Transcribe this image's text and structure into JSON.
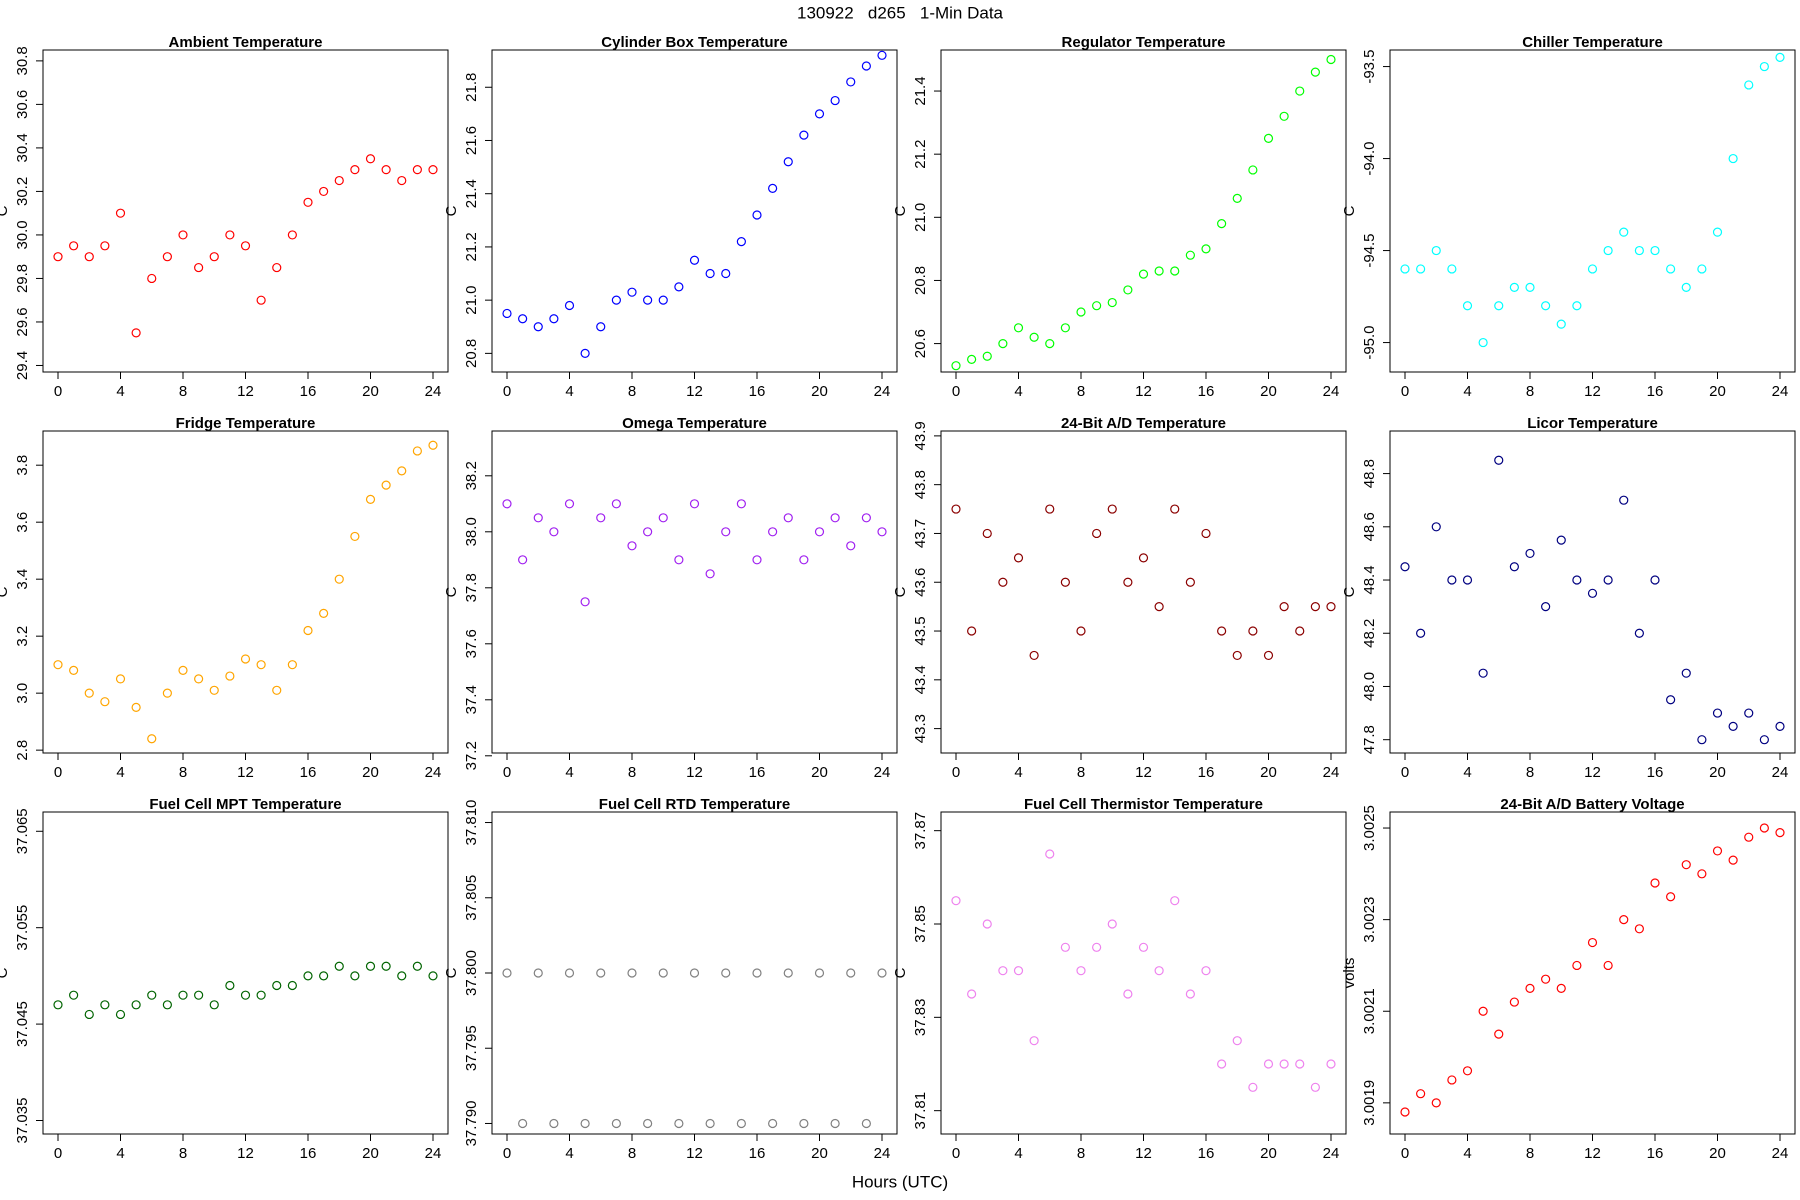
{
  "title": "130922   d265   1-Min Data",
  "xlabel": "Hours (UTC)",
  "chart_data": [
    {
      "type": "scatter",
      "title": "Ambient Temperature",
      "ylabel": "C",
      "color": "#ff0000",
      "x": [
        0,
        1,
        2,
        3,
        4,
        5,
        6,
        7,
        8,
        9,
        10,
        11,
        12,
        13,
        14,
        15,
        16,
        17,
        18,
        19,
        20,
        21,
        22,
        23,
        24
      ],
      "values": [
        29.9,
        29.95,
        29.9,
        29.95,
        30.1,
        29.55,
        29.8,
        29.9,
        30.0,
        29.85,
        29.9,
        30.0,
        29.95,
        29.7,
        29.85,
        30.0,
        30.15,
        30.2,
        30.25,
        30.3,
        30.35,
        30.3,
        30.25,
        30.3,
        30.3
      ],
      "xlim": [
        -0.96,
        24.96
      ],
      "xticks": [
        0,
        4,
        8,
        12,
        16,
        20,
        24
      ],
      "ylim": [
        29.37,
        30.85
      ],
      "yticks": [
        29.4,
        29.6,
        29.8,
        {
          "value": 30,
          "label": "30.0"
        },
        30.2,
        30.4,
        30.6,
        30.8
      ]
    },
    {
      "type": "scatter",
      "title": "Cylinder Box Temperature",
      "ylabel": "C",
      "color": "#0000ff",
      "x": [
        0,
        1,
        2,
        3,
        4,
        5,
        6,
        7,
        8,
        9,
        10,
        11,
        12,
        13,
        14,
        15,
        16,
        17,
        18,
        19,
        20,
        21,
        22,
        23,
        24
      ],
      "values": [
        20.95,
        20.93,
        20.9,
        20.93,
        20.98,
        20.8,
        20.9,
        21.0,
        21.03,
        21.0,
        21.0,
        21.05,
        21.15,
        21.1,
        21.1,
        21.22,
        21.32,
        21.42,
        21.52,
        21.62,
        21.7,
        21.75,
        21.82,
        21.88,
        21.92
      ],
      "xlim": [
        -0.96,
        24.96
      ],
      "xticks": [
        0,
        4,
        8,
        12,
        16,
        20,
        24
      ],
      "ylim": [
        20.73,
        21.94
      ],
      "yticks": [
        20.8,
        {
          "value": 21,
          "label": "21.0"
        },
        21.2,
        21.4,
        21.6,
        21.8
      ]
    },
    {
      "type": "scatter",
      "title": "Regulator Temperature",
      "ylabel": "C",
      "color": "#00ff00",
      "x": [
        0,
        1,
        2,
        3,
        4,
        5,
        6,
        7,
        8,
        9,
        10,
        11,
        12,
        13,
        14,
        15,
        16,
        17,
        18,
        19,
        20,
        21,
        22,
        23,
        24
      ],
      "values": [
        20.53,
        20.55,
        20.56,
        20.6,
        20.65,
        20.62,
        20.6,
        20.65,
        20.7,
        20.72,
        20.73,
        20.77,
        20.82,
        20.83,
        20.83,
        20.88,
        20.9,
        20.98,
        21.06,
        21.15,
        21.25,
        21.32,
        21.4,
        21.46,
        21.5
      ],
      "xlim": [
        -0.96,
        24.96
      ],
      "xticks": [
        0,
        4,
        8,
        12,
        16,
        20,
        24
      ],
      "ylim": [
        20.51,
        21.53
      ],
      "yticks": [
        20.6,
        20.8,
        {
          "value": 21,
          "label": "21.0"
        },
        21.2,
        21.4
      ]
    },
    {
      "type": "scatter",
      "title": "Chiller Temperature",
      "ylabel": "C",
      "color": "#00ffff",
      "x": [
        0,
        1,
        2,
        3,
        4,
        5,
        6,
        7,
        8,
        9,
        10,
        11,
        12,
        13,
        14,
        15,
        16,
        17,
        18,
        19,
        20,
        21,
        22,
        23,
        24
      ],
      "values": [
        -94.6,
        -94.6,
        -94.5,
        -94.6,
        -94.8,
        -95.0,
        -94.8,
        -94.7,
        -94.7,
        -94.8,
        -94.9,
        -94.8,
        -94.6,
        -94.5,
        -94.4,
        -94.5,
        -94.5,
        -94.6,
        -94.7,
        -94.6,
        -94.4,
        -94.0,
        -93.6,
        -93.5,
        -93.45
      ],
      "xlim": [
        -0.96,
        24.96
      ],
      "xticks": [
        0,
        4,
        8,
        12,
        16,
        20,
        24
      ],
      "ylim": [
        -95.16,
        -93.41
      ],
      "yticks": [
        {
          "value": -95,
          "label": "-95.0"
        },
        -94.5,
        {
          "value": -94,
          "label": "-94.0"
        },
        -93.5
      ]
    },
    {
      "type": "scatter",
      "title": "Fridge Temperature",
      "ylabel": "C",
      "color": "#ffa500",
      "x": [
        0,
        1,
        2,
        3,
        4,
        5,
        6,
        7,
        8,
        9,
        10,
        11,
        12,
        13,
        14,
        15,
        16,
        17,
        18,
        19,
        20,
        21,
        22,
        23,
        24
      ],
      "values": [
        3.1,
        3.08,
        3.0,
        2.97,
        3.05,
        2.95,
        2.84,
        3.0,
        3.08,
        3.05,
        3.01,
        3.06,
        3.12,
        3.1,
        3.01,
        3.1,
        3.22,
        3.28,
        3.4,
        3.55,
        3.68,
        3.73,
        3.78,
        3.85,
        3.87
      ],
      "xlim": [
        -0.96,
        24.96
      ],
      "xticks": [
        0,
        4,
        8,
        12,
        16,
        20,
        24
      ],
      "ylim": [
        2.79,
        3.92
      ],
      "yticks": [
        2.8,
        {
          "value": 3,
          "label": "3.0"
        },
        3.2,
        3.4,
        3.6,
        3.8
      ]
    },
    {
      "type": "scatter",
      "title": "Omega Temperature",
      "ylabel": "C",
      "color": "#a020f0",
      "x": [
        0,
        1,
        2,
        3,
        4,
        5,
        6,
        7,
        8,
        9,
        10,
        11,
        12,
        13,
        14,
        15,
        16,
        17,
        18,
        19,
        20,
        21,
        22,
        23,
        24
      ],
      "values": [
        38.1,
        37.9,
        38.05,
        38.0,
        38.1,
        37.75,
        38.05,
        38.1,
        37.95,
        38.0,
        38.05,
        37.9,
        38.1,
        37.85,
        38.0,
        38.1,
        37.9,
        38.0,
        38.05,
        37.9,
        38.0,
        38.05,
        37.95,
        38.05,
        38.0
      ],
      "xlim": [
        -0.96,
        24.96
      ],
      "xticks": [
        0,
        4,
        8,
        12,
        16,
        20,
        24
      ],
      "ylim": [
        37.21,
        38.36
      ],
      "yticks": [
        37.2,
        37.4,
        37.6,
        37.8,
        {
          "value": 38,
          "label": "38.0"
        },
        38.2
      ]
    },
    {
      "type": "scatter",
      "title": "24-Bit A/D Temperature",
      "ylabel": "C",
      "color": "#8b0000",
      "x": [
        0,
        1,
        2,
        3,
        4,
        5,
        6,
        7,
        8,
        9,
        10,
        11,
        12,
        13,
        14,
        15,
        16,
        17,
        18,
        19,
        20,
        21,
        22,
        23,
        24
      ],
      "values": [
        43.75,
        43.5,
        43.7,
        43.6,
        43.65,
        43.45,
        43.75,
        43.6,
        43.5,
        43.7,
        43.75,
        43.6,
        43.65,
        43.55,
        43.75,
        43.6,
        43.7,
        43.5,
        43.45,
        43.5,
        43.45,
        43.55,
        43.5,
        43.55,
        43.55
      ],
      "xlim": [
        -0.96,
        24.96
      ],
      "xticks": [
        0,
        4,
        8,
        12,
        16,
        20,
        24
      ],
      "ylim": [
        43.25,
        43.91
      ],
      "yticks": [
        43.3,
        43.4,
        43.5,
        43.6,
        43.7,
        43.8,
        43.9
      ]
    },
    {
      "type": "scatter",
      "title": "Licor Temperature",
      "ylabel": "C",
      "color": "#000080",
      "x": [
        0,
        1,
        2,
        3,
        4,
        5,
        6,
        7,
        8,
        9,
        10,
        11,
        12,
        13,
        14,
        15,
        16,
        17,
        18,
        19,
        20,
        21,
        22,
        23,
        24
      ],
      "values": [
        48.45,
        48.2,
        48.6,
        48.4,
        48.4,
        48.05,
        48.85,
        48.45,
        48.5,
        48.3,
        48.55,
        48.4,
        48.35,
        48.4,
        48.7,
        48.2,
        48.4,
        47.95,
        48.05,
        47.8,
        47.9,
        47.85,
        47.9,
        47.8,
        47.85
      ],
      "xlim": [
        -0.96,
        24.96
      ],
      "xticks": [
        0,
        4,
        8,
        12,
        16,
        20,
        24
      ],
      "ylim": [
        47.75,
        48.96
      ],
      "yticks": [
        47.8,
        {
          "value": 48,
          "label": "48.0"
        },
        48.2,
        48.4,
        48.6,
        48.8
      ]
    },
    {
      "type": "scatter",
      "title": "Fuel Cell MPT Temperature",
      "ylabel": "C",
      "color": "#006400",
      "x": [
        0,
        1,
        2,
        3,
        4,
        5,
        6,
        7,
        8,
        9,
        10,
        11,
        12,
        13,
        14,
        15,
        16,
        17,
        18,
        19,
        20,
        21,
        22,
        23,
        24
      ],
      "values": [
        37.047,
        37.048,
        37.046,
        37.047,
        37.046,
        37.047,
        37.048,
        37.047,
        37.048,
        37.048,
        37.047,
        37.049,
        37.048,
        37.048,
        37.049,
        37.049,
        37.05,
        37.05,
        37.051,
        37.05,
        37.051,
        37.051,
        37.05,
        37.051,
        37.05
      ],
      "xlim": [
        -0.96,
        24.96
      ],
      "xticks": [
        0,
        4,
        8,
        12,
        16,
        20,
        24
      ],
      "ylim": [
        37.0336,
        37.067
      ],
      "yticks": [
        37.035,
        37.045,
        37.055,
        37.065
      ]
    },
    {
      "type": "scatter",
      "title": "Fuel Cell RTD Temperature",
      "ylabel": "C",
      "color": "#808080",
      "x": [
        0,
        1,
        2,
        3,
        4,
        5,
        6,
        7,
        8,
        9,
        10,
        11,
        12,
        13,
        14,
        15,
        16,
        17,
        18,
        19,
        20,
        21,
        22,
        23,
        24
      ],
      "values": [
        37.8,
        37.79,
        37.8,
        37.79,
        37.8,
        37.79,
        37.8,
        37.79,
        37.8,
        37.79,
        37.8,
        37.79,
        37.8,
        37.79,
        37.8,
        37.79,
        37.8,
        37.79,
        37.8,
        37.79,
        37.8,
        37.79,
        37.8,
        37.79,
        37.8
      ],
      "xlim": [
        -0.96,
        24.96
      ],
      "xticks": [
        0,
        4,
        8,
        12,
        16,
        20,
        24
      ],
      "ylim": [
        37.7893,
        37.8107
      ],
      "yticks": [
        {
          "value": 37.79,
          "label": "37.790"
        },
        37.795,
        {
          "value": 37.8,
          "label": "37.800"
        },
        37.805,
        {
          "value": 37.81,
          "label": "37.810"
        }
      ]
    },
    {
      "type": "scatter",
      "title": "Fuel Cell Thermistor Temperature",
      "ylabel": "C",
      "color": "#ee82ee",
      "x": [
        0,
        1,
        2,
        3,
        4,
        5,
        6,
        7,
        8,
        9,
        10,
        11,
        12,
        13,
        14,
        15,
        16,
        17,
        18,
        19,
        20,
        21,
        22,
        23,
        24
      ],
      "values": [
        37.855,
        37.835,
        37.85,
        37.84,
        37.84,
        37.825,
        37.865,
        37.845,
        37.84,
        37.845,
        37.85,
        37.835,
        37.845,
        37.84,
        37.855,
        37.835,
        37.84,
        37.82,
        37.825,
        37.815,
        37.82,
        37.82,
        37.82,
        37.815,
        37.82
      ],
      "xlim": [
        -0.96,
        24.96
      ],
      "xticks": [
        0,
        4,
        8,
        12,
        16,
        20,
        24
      ],
      "ylim": [
        37.805,
        37.874
      ],
      "yticks": [
        37.81,
        37.83,
        37.85,
        37.87
      ]
    },
    {
      "type": "scatter",
      "title": "24-Bit A/D Battery Voltage",
      "ylabel": "volts",
      "color": "#ff0000",
      "x": [
        0,
        1,
        2,
        3,
        4,
        5,
        6,
        7,
        8,
        9,
        10,
        11,
        12,
        13,
        14,
        15,
        16,
        17,
        18,
        19,
        20,
        21,
        22,
        23,
        24
      ],
      "values": [
        3.00188,
        3.00192,
        3.0019,
        3.00195,
        3.00197,
        3.0021,
        3.00205,
        3.00212,
        3.00215,
        3.00217,
        3.00215,
        3.0022,
        3.00225,
        3.0022,
        3.0023,
        3.00228,
        3.00238,
        3.00235,
        3.00242,
        3.0024,
        3.00245,
        3.00243,
        3.00248,
        3.0025,
        3.00249
      ],
      "xlim": [
        -0.96,
        24.96
      ],
      "xticks": [
        0,
        4,
        8,
        12,
        16,
        20,
        24
      ],
      "ylim": [
        3.001832,
        3.002535
      ],
      "yticks": [
        3.0019,
        3.0021,
        3.0023,
        3.0025
      ]
    }
  ]
}
